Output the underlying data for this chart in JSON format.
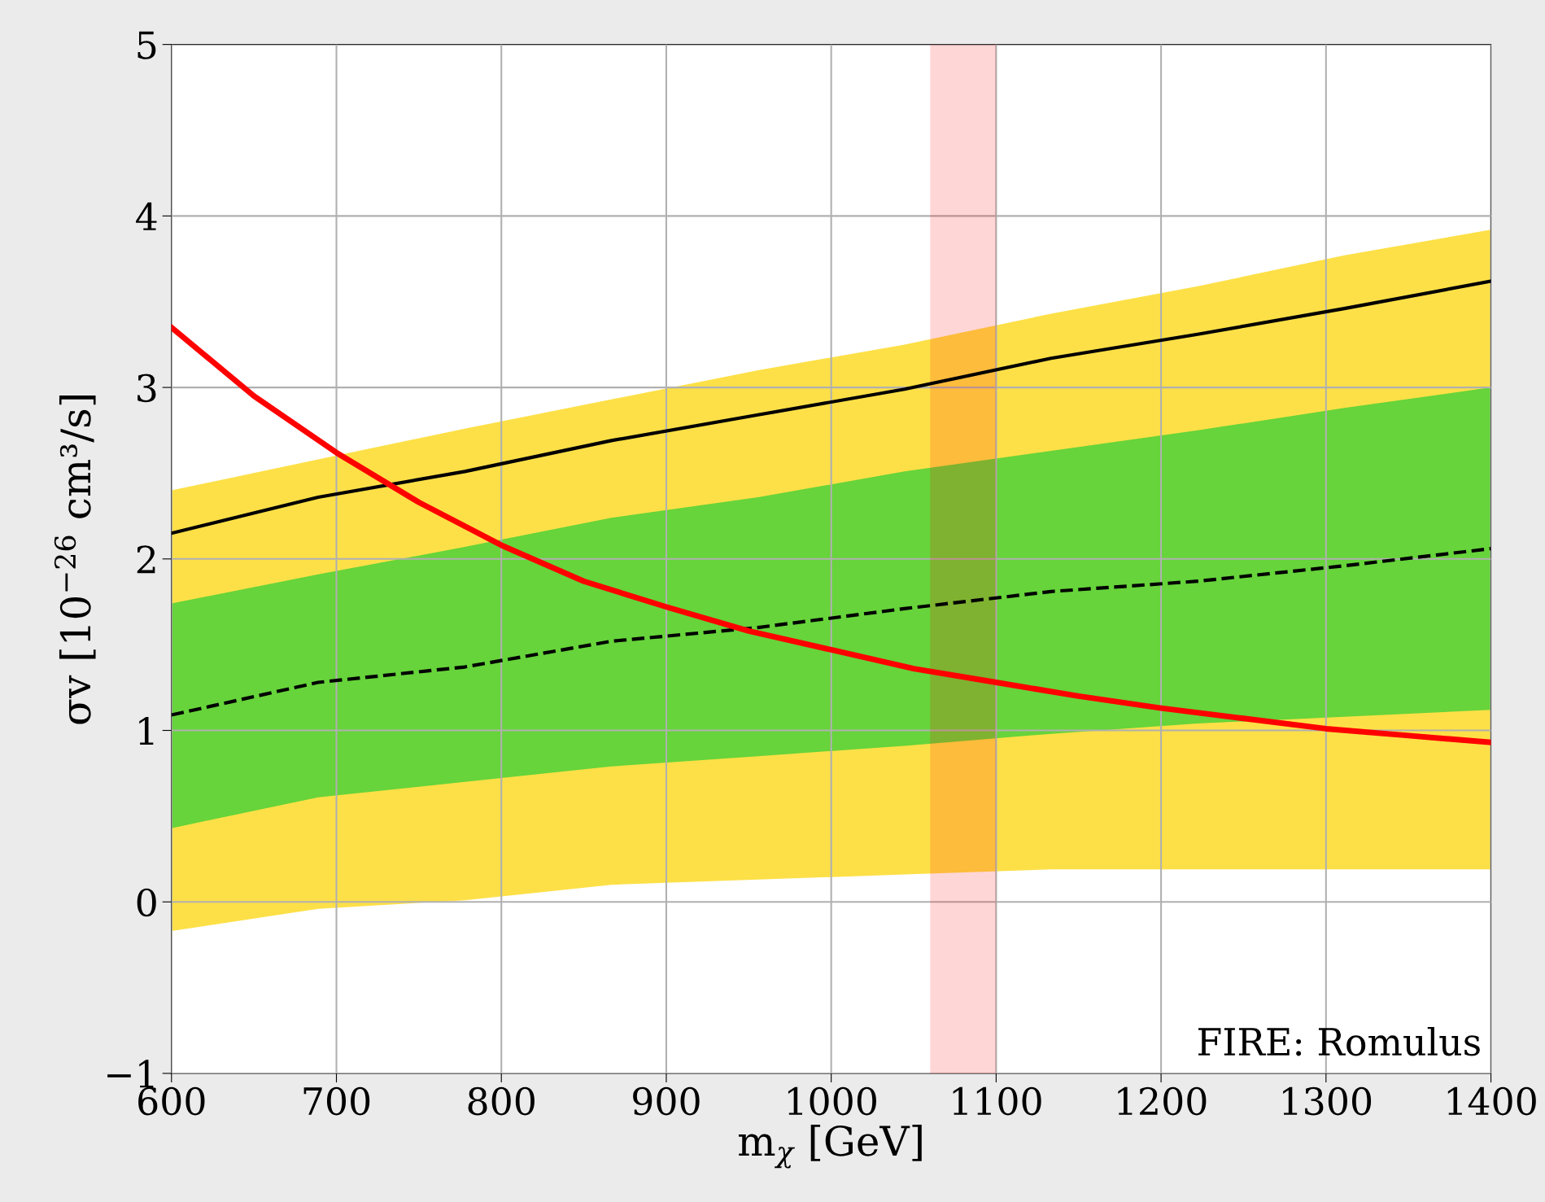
{
  "chart_data": {
    "type": "line",
    "xlabel": "m$_{χ}$ [GeV]",
    "ylabel": "σv [10$^{−26}$ cm³/s]",
    "xlim": [
      600,
      1400
    ],
    "xticks": [
      600,
      700,
      800,
      900,
      1000,
      1100,
      1200,
      1300,
      1400
    ],
    "ylim": [
      -1,
      5
    ],
    "yticks": [
      -1,
      0,
      1,
      2,
      3,
      4,
      5
    ],
    "grid": true,
    "series": [
      {
        "color": "#000000",
        "line_style": "solid",
        "x": [
          600,
          688.9,
          777.8,
          866.7,
          955.6,
          1044.4,
          1133.3,
          1222.2,
          1311.1,
          1400
        ],
        "values": [
          2.15,
          2.36,
          2.51,
          2.69,
          2.84,
          2.99,
          3.17,
          3.31,
          3.46,
          3.62
        ],
        "lower": [
          -0.17,
          -0.04,
          0.01,
          0.1,
          0.13,
          0.16,
          0.19,
          0.19,
          0.19,
          0.19
        ],
        "upper": [
          2.4,
          2.58,
          2.76,
          2.93,
          3.1,
          3.25,
          3.43,
          3.59,
          3.77,
          3.92
        ]
      },
      {
        "color": "#000000",
        "line_style": "dashed",
        "x": [
          600,
          688.9,
          777.8,
          866.7,
          955.6,
          1044.4,
          1133.3,
          1222.2,
          1311.1,
          1400
        ],
        "values": [
          1.09,
          1.28,
          1.37,
          1.52,
          1.6,
          1.71,
          1.81,
          1.87,
          1.96,
          2.06
        ],
        "lower": [
          0.43,
          0.61,
          0.7,
          0.79,
          0.85,
          0.91,
          0.98,
          1.04,
          1.08,
          1.12
        ],
        "upper": [
          1.74,
          1.91,
          2.07,
          2.24,
          2.36,
          2.51,
          2.63,
          2.75,
          2.88,
          3.0
        ]
      },
      {
        "color": "#ff0000",
        "line_style": "solid",
        "x": [
          600,
          650,
          700,
          750,
          800,
          850,
          900,
          950,
          1000,
          1050,
          1100,
          1150,
          1200,
          1250,
          1300,
          1350,
          1400
        ],
        "values": [
          3.35,
          2.95,
          2.62,
          2.33,
          2.08,
          1.87,
          1.72,
          1.58,
          1.47,
          1.36,
          1.28,
          1.2,
          1.13,
          1.07,
          1.01,
          0.97,
          0.93
        ]
      }
    ],
    "bands": [
      {
        "axis": "x",
        "from": 1060,
        "to": 1100,
        "color": "#ff0000"
      }
    ],
    "annotations": [
      "FIRE: Romulus"
    ]
  }
}
